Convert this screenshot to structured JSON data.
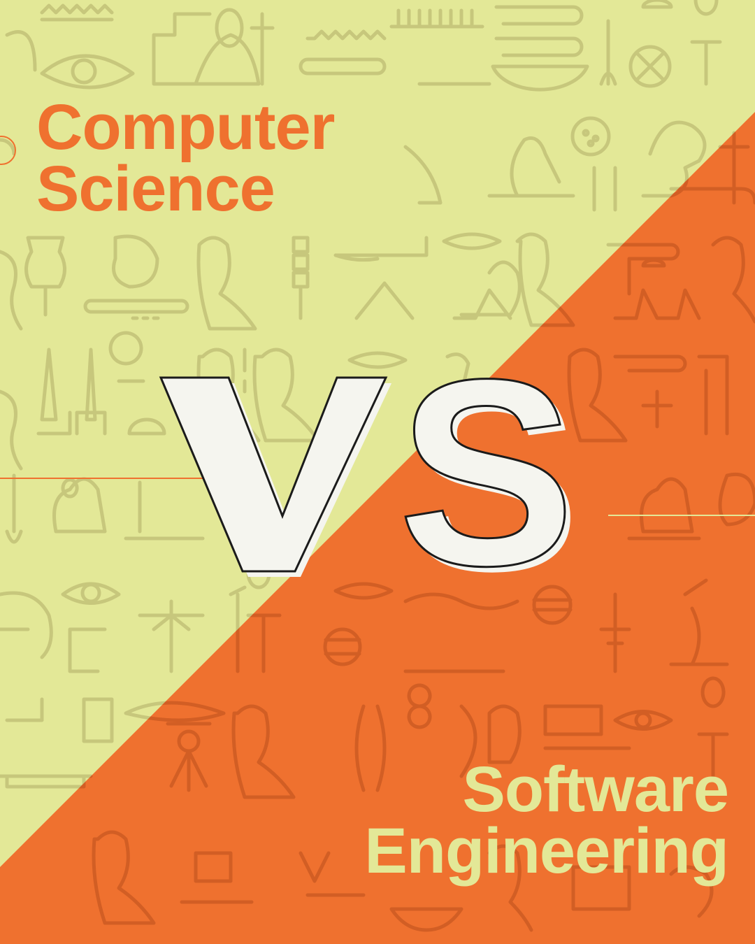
{
  "colors": {
    "yellow": "#e3e897",
    "orange": "#ef712f",
    "glyph_on_yellow": "#c7c77c",
    "glyph_on_orange": "#d25e24",
    "vs_fill": "#f5f5ef",
    "vs_outline": "#1b1b1b"
  },
  "top_heading": {
    "line1": "Computer",
    "line2": "Science"
  },
  "vs_label": "VS",
  "bottom_heading": {
    "line1": "Software",
    "line2": "Engineering"
  }
}
